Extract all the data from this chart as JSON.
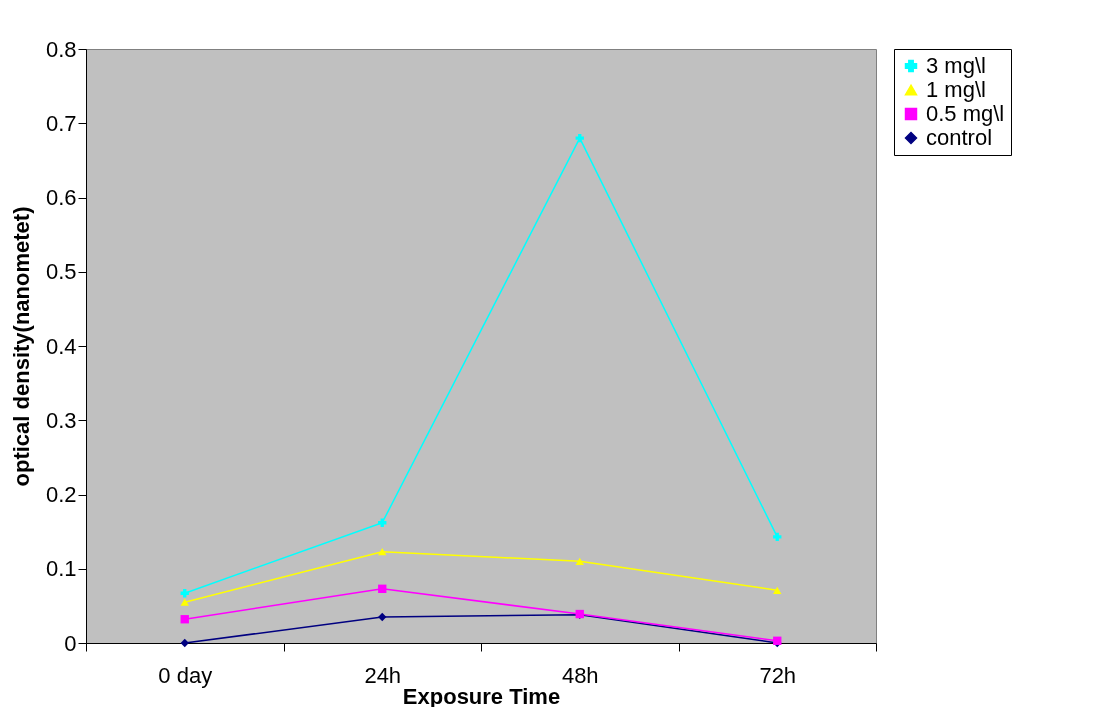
{
  "chart_data": {
    "type": "line",
    "xlabel": "Exposure Time",
    "ylabel": "optical density(nanometet)",
    "categories": [
      "0 day",
      "24h",
      "48h",
      "72h"
    ],
    "series": [
      {
        "name": "3 mg\\l",
        "color": "#00ffff",
        "marker": "cross",
        "values": [
          0.067,
          0.162,
          0.68,
          0.143
        ]
      },
      {
        "name": "1 mg\\l",
        "color": "#ffff00",
        "marker": "triangle",
        "values": [
          0.055,
          0.123,
          0.11,
          0.071
        ]
      },
      {
        "name": "0.5 mg\\l",
        "color": "#ff00ff",
        "marker": "square",
        "values": [
          0.032,
          0.073,
          0.039,
          0.003
        ]
      },
      {
        "name": "control",
        "color": "#000080",
        "marker": "diamond",
        "values": [
          0,
          0.035,
          0.038,
          0
        ]
      }
    ],
    "ylim": [
      0,
      0.8
    ],
    "yticks": [
      0,
      0.1,
      0.2,
      0.3,
      0.4,
      0.5,
      0.6,
      0.7,
      0.8
    ],
    "grid": false,
    "legend": "right"
  }
}
